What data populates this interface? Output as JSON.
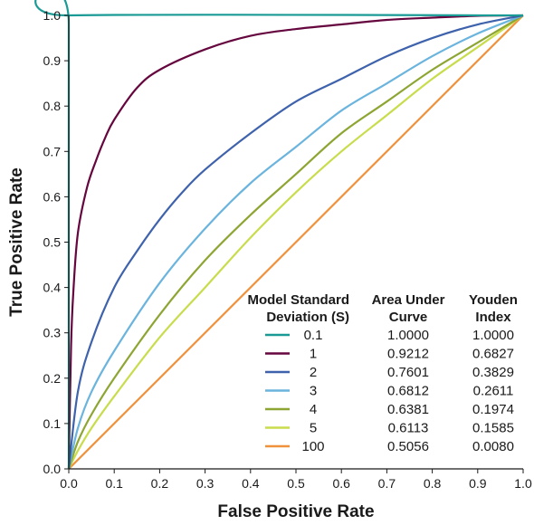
{
  "chart_data": {
    "type": "line",
    "xlabel": "False Positive Rate",
    "ylabel": "True Positive Rate",
    "xlim": [
      0,
      1
    ],
    "ylim": [
      0,
      1
    ],
    "x_ticks": [
      "0.0",
      "0.1",
      "0.2",
      "0.3",
      "0.4",
      "0.5",
      "0.6",
      "0.7",
      "0.8",
      "0.9",
      "1.0"
    ],
    "y_ticks": [
      "0.0",
      "0.1",
      "0.2",
      "0.3",
      "0.4",
      "0.5",
      "0.6",
      "0.7",
      "0.8",
      "0.9",
      "1.0"
    ],
    "grid": false,
    "legend_position": "bottom-right",
    "legend_headers": {
      "sd": [
        "Model Standard",
        "Deviation (S)"
      ],
      "auc": [
        "Area Under",
        "Curve"
      ],
      "youden": [
        "Youden",
        "Index"
      ]
    },
    "series": [
      {
        "sd": "0.1",
        "auc": "1.0000",
        "youden": "1.0000",
        "color": "#1a9a95",
        "x": [
          0,
          0.0,
          0.001,
          1.0
        ],
        "y": [
          0,
          0.98,
          1.0,
          1.0
        ]
      },
      {
        "sd": "1",
        "auc": "0.9212",
        "youden": "0.6827",
        "color": "#66063f",
        "x": [
          0,
          0.005,
          0.01,
          0.02,
          0.04,
          0.06,
          0.08,
          0.1,
          0.15,
          0.2,
          0.3,
          0.4,
          0.5,
          0.6,
          0.7,
          0.8,
          0.9,
          1.0
        ],
        "y": [
          0,
          0.27,
          0.39,
          0.52,
          0.62,
          0.68,
          0.73,
          0.77,
          0.84,
          0.88,
          0.925,
          0.955,
          0.97,
          0.98,
          0.99,
          0.995,
          0.999,
          1.0
        ]
      },
      {
        "sd": "2",
        "auc": "0.7601",
        "youden": "0.3829",
        "color": "#3e62ac",
        "x": [
          0,
          0.02,
          0.05,
          0.1,
          0.15,
          0.2,
          0.25,
          0.3,
          0.4,
          0.5,
          0.6,
          0.7,
          0.8,
          0.9,
          1.0
        ],
        "y": [
          0,
          0.17,
          0.28,
          0.4,
          0.48,
          0.55,
          0.61,
          0.66,
          0.74,
          0.81,
          0.86,
          0.91,
          0.95,
          0.98,
          1.0
        ]
      },
      {
        "sd": "3",
        "auc": "0.6812",
        "youden": "0.2611",
        "color": "#6ab4de",
        "x": [
          0,
          0.02,
          0.05,
          0.1,
          0.2,
          0.3,
          0.4,
          0.5,
          0.6,
          0.7,
          0.8,
          0.9,
          1.0
        ],
        "y": [
          0,
          0.09,
          0.17,
          0.26,
          0.41,
          0.53,
          0.63,
          0.71,
          0.79,
          0.85,
          0.91,
          0.96,
          1.0
        ]
      },
      {
        "sd": "4",
        "auc": "0.6381",
        "youden": "0.1974",
        "color": "#8da532",
        "x": [
          0,
          0.02,
          0.05,
          0.1,
          0.2,
          0.3,
          0.4,
          0.5,
          0.6,
          0.7,
          0.8,
          0.9,
          1.0
        ],
        "y": [
          0,
          0.06,
          0.12,
          0.2,
          0.34,
          0.46,
          0.56,
          0.65,
          0.74,
          0.81,
          0.88,
          0.94,
          1.0
        ]
      },
      {
        "sd": "5",
        "auc": "0.6113",
        "youden": "0.1585",
        "color": "#c9dc4c",
        "x": [
          0,
          0.02,
          0.05,
          0.1,
          0.2,
          0.3,
          0.4,
          0.5,
          0.6,
          0.7,
          0.8,
          0.9,
          1.0
        ],
        "y": [
          0,
          0.04,
          0.09,
          0.16,
          0.29,
          0.4,
          0.51,
          0.61,
          0.7,
          0.78,
          0.86,
          0.93,
          1.0
        ]
      },
      {
        "sd": "100",
        "auc": "0.5056",
        "youden": "0.0080",
        "color": "#f0913c",
        "x": [
          0,
          1.0
        ],
        "y": [
          0,
          1.0
        ]
      }
    ]
  }
}
